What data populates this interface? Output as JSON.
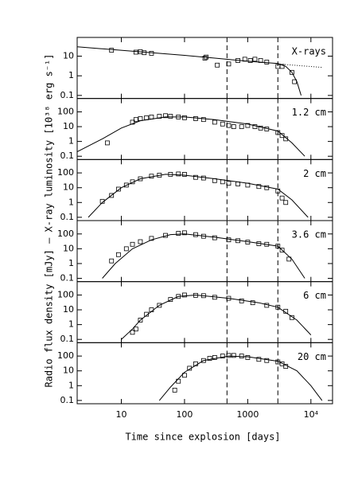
{
  "x_label": "Time since explosion [days]",
  "y_label": "Radio flux density [mJy] – X-ray luminosity [10³⁸ erg s⁻¹]",
  "chart_data": [
    {
      "type": "scatter",
      "panel_label": "X-rays",
      "log_x": true,
      "log_y": true,
      "xlim": [
        2,
        22000
      ],
      "ylim": [
        0.07,
        90
      ],
      "yticks": [
        0.1,
        1,
        10
      ],
      "vlines": [
        470,
        3000
      ],
      "x": [
        7,
        17,
        20,
        23,
        30,
        210,
        220,
        330,
        500,
        700,
        900,
        1100,
        1300,
        1600,
        2000,
        3000,
        3500,
        5000,
        5500
      ],
      "values": [
        20,
        16,
        17,
        15,
        14,
        8,
        9,
        3.5,
        4,
        6,
        7,
        6,
        7,
        6,
        5,
        3,
        3,
        1.5,
        0.5
      ],
      "model_x": [
        2,
        100,
        1000,
        3000,
        4000,
        5000,
        6000,
        7000
      ],
      "model_values": [
        30,
        11,
        5.5,
        4.2,
        3,
        1.5,
        0.5,
        0.1
      ],
      "extrapolation_x": [
        3000,
        15000
      ],
      "extrapolation_values": [
        4,
        2.7
      ]
    },
    {
      "type": "scatter",
      "panel_label": "1.2 cm",
      "log_x": true,
      "log_y": true,
      "xlim": [
        2,
        22000
      ],
      "ylim": [
        0.06,
        800
      ],
      "yticks": [
        0.1,
        1,
        10,
        100
      ],
      "vlines": [
        470,
        3000
      ],
      "x": [
        6,
        15,
        17,
        20,
        25,
        30,
        40,
        50,
        60,
        80,
        100,
        150,
        200,
        300,
        400,
        500,
        600,
        800,
        1000,
        1300,
        1600,
        2000,
        3000,
        3500,
        4000
      ],
      "values": [
        0.8,
        20,
        30,
        35,
        40,
        45,
        50,
        55,
        50,
        45,
        40,
        35,
        30,
        20,
        15,
        12,
        10,
        10,
        12,
        10,
        8,
        7,
        4,
        2.5,
        1.5
      ],
      "model_x": [
        2,
        5,
        10,
        20,
        50,
        100,
        300,
        1000,
        3000,
        5000,
        8000
      ],
      "model_values": [
        0.2,
        1.5,
        8,
        25,
        45,
        45,
        30,
        15,
        5,
        0.8,
        0.1
      ]
    },
    {
      "type": "scatter",
      "panel_label": "2 cm",
      "log_x": true,
      "log_y": true,
      "xlim": [
        2,
        22000
      ],
      "ylim": [
        0.06,
        800
      ],
      "yticks": [
        0.1,
        1,
        10,
        100
      ],
      "vlines": [
        470,
        3000
      ],
      "x": [
        5,
        7,
        9,
        12,
        15,
        20,
        30,
        40,
        60,
        80,
        100,
        150,
        200,
        300,
        400,
        500,
        700,
        1000,
        1500,
        2000,
        3000,
        3500,
        4000
      ],
      "values": [
        1.2,
        3,
        8,
        15,
        25,
        40,
        60,
        70,
        80,
        85,
        80,
        50,
        45,
        30,
        25,
        20,
        18,
        15,
        12,
        10,
        6,
        2,
        1
      ],
      "model_x": [
        3,
        5,
        10,
        20,
        50,
        100,
        300,
        1000,
        3000,
        5000,
        9000
      ],
      "model_values": [
        0.1,
        1,
        10,
        40,
        80,
        70,
        40,
        20,
        8,
        1.5,
        0.1
      ]
    },
    {
      "type": "scatter",
      "panel_label": "3.6 cm",
      "log_x": true,
      "log_y": true,
      "xlim": [
        2,
        22000
      ],
      "ylim": [
        0.06,
        800
      ],
      "yticks": [
        0.1,
        1,
        10,
        100
      ],
      "vlines": [
        470,
        3000
      ],
      "x": [
        7,
        9,
        12,
        15,
        20,
        30,
        50,
        80,
        100,
        150,
        200,
        300,
        500,
        700,
        1000,
        1500,
        2000,
        3000,
        3500,
        4500
      ],
      "values": [
        1.5,
        4,
        10,
        20,
        30,
        50,
        80,
        110,
        120,
        90,
        70,
        55,
        40,
        35,
        28,
        22,
        20,
        15,
        8,
        2
      ],
      "model_x": [
        5,
        8,
        15,
        30,
        60,
        100,
        300,
        1000,
        3000,
        5000,
        8000
      ],
      "model_values": [
        0.1,
        1,
        10,
        40,
        90,
        100,
        60,
        30,
        15,
        2,
        0.1
      ]
    },
    {
      "type": "scatter",
      "panel_label": "6 cm",
      "log_x": true,
      "log_y": true,
      "xlim": [
        2,
        22000
      ],
      "ylim": [
        0.06,
        800
      ],
      "yticks": [
        0.1,
        1,
        10,
        100
      ],
      "vlines": [
        470,
        3000
      ],
      "x": [
        15,
        17,
        20,
        25,
        30,
        40,
        60,
        80,
        100,
        150,
        200,
        300,
        500,
        800,
        1200,
        2000,
        3000,
        4000,
        5000
      ],
      "values": [
        0.3,
        0.5,
        2,
        5,
        10,
        20,
        50,
        80,
        100,
        95,
        90,
        70,
        60,
        40,
        30,
        20,
        15,
        8,
        3
      ],
      "model_x": [
        10,
        15,
        20,
        40,
        80,
        150,
        500,
        1500,
        3000,
        6000,
        10000
      ],
      "model_values": [
        0.1,
        0.5,
        2,
        20,
        80,
        100,
        60,
        30,
        15,
        2,
        0.2
      ]
    },
    {
      "type": "scatter",
      "panel_label": "20 cm",
      "log_x": true,
      "log_y": true,
      "xlim": [
        2,
        22000
      ],
      "ylim": [
        0.06,
        800
      ],
      "yticks": [
        0.1,
        1,
        10,
        100
      ],
      "vlines": [
        470,
        3000
      ],
      "xticks": [
        10,
        100,
        1000,
        {
          "value": 10000,
          "label": "10⁴"
        }
      ],
      "x": [
        70,
        80,
        100,
        120,
        150,
        200,
        250,
        300,
        400,
        500,
        600,
        800,
        1000,
        1500,
        2000,
        3000,
        3500,
        4000
      ],
      "values": [
        0.5,
        2,
        5,
        15,
        30,
        50,
        70,
        80,
        100,
        110,
        110,
        100,
        80,
        60,
        50,
        40,
        30,
        20
      ],
      "model_x": [
        40,
        60,
        100,
        200,
        500,
        1000,
        3000,
        6000,
        10000,
        15000
      ],
      "model_values": [
        0.1,
        0.8,
        8,
        50,
        100,
        90,
        45,
        10,
        1,
        0.1
      ]
    }
  ]
}
